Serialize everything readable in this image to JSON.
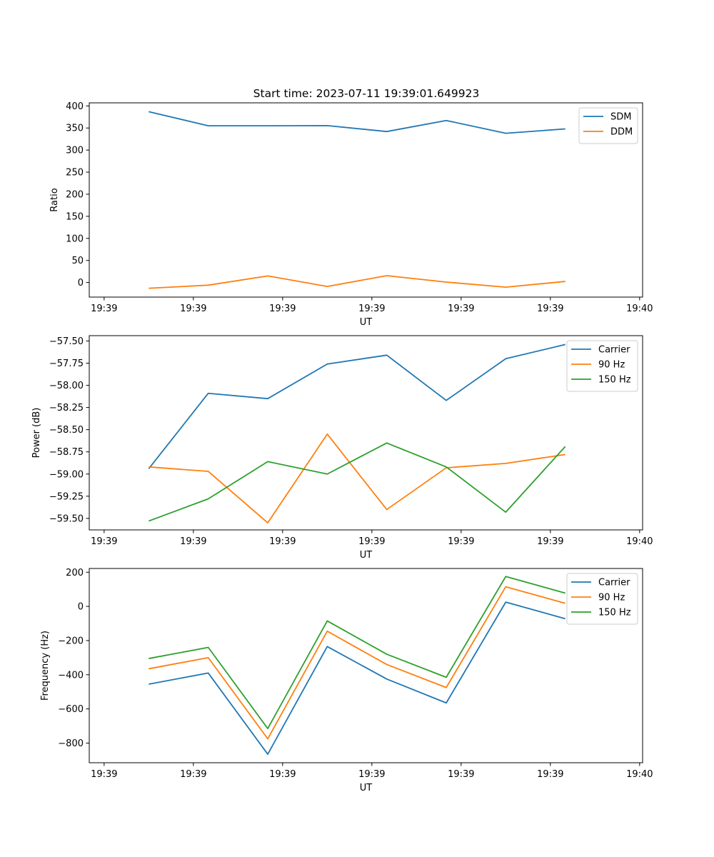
{
  "figure": {
    "title": "Start time: 2023-07-11 19:39:01.649923"
  },
  "chart_data": [
    {
      "type": "line",
      "title": "Start time: 2023-07-11 19:39:01.649923",
      "xlabel": "UT",
      "ylabel": "Ratio",
      "x": [
        1,
        2,
        3,
        4,
        5,
        6,
        7,
        8
      ],
      "xlim": [
        0,
        9.3
      ],
      "xticks": [
        {
          "value": 0.25,
          "label": "19:39"
        },
        {
          "value": 1.75,
          "label": "19:39"
        },
        {
          "value": 3.25,
          "label": "19:39"
        },
        {
          "value": 4.75,
          "label": "19:39"
        },
        {
          "value": 6.25,
          "label": "19:39"
        },
        {
          "value": 7.75,
          "label": "19:39"
        },
        {
          "value": 9.25,
          "label": "19:40"
        }
      ],
      "ylim": [
        -33,
        407
      ],
      "yticks": [
        {
          "value": 0,
          "label": "0"
        },
        {
          "value": 50,
          "label": "50"
        },
        {
          "value": 100,
          "label": "100"
        },
        {
          "value": 150,
          "label": "150"
        },
        {
          "value": 200,
          "label": "200"
        },
        {
          "value": 250,
          "label": "250"
        },
        {
          "value": 300,
          "label": "300"
        },
        {
          "value": 350,
          "label": "350"
        },
        {
          "value": 400,
          "label": "400"
        }
      ],
      "legend": "top-right",
      "grid": false,
      "series": [
        {
          "name": "SDM",
          "color": "#1f77b4",
          "values": [
            387,
            355,
            355,
            355.5,
            342,
            367,
            338,
            348
          ]
        },
        {
          "name": "DDM",
          "color": "#ff7f0e",
          "values": [
            -13,
            -6,
            15,
            -9,
            15.5,
            1,
            -10.5,
            2.5
          ]
        }
      ]
    },
    {
      "type": "line",
      "title": "",
      "xlabel": "UT",
      "ylabel": "Power (dB)",
      "x": [
        1,
        2,
        3,
        4,
        5,
        6,
        7,
        8
      ],
      "xlim": [
        0,
        9.3
      ],
      "xticks": [
        {
          "value": 0.25,
          "label": "19:39"
        },
        {
          "value": 1.75,
          "label": "19:39"
        },
        {
          "value": 3.25,
          "label": "19:39"
        },
        {
          "value": 4.75,
          "label": "19:39"
        },
        {
          "value": 6.25,
          "label": "19:39"
        },
        {
          "value": 7.75,
          "label": "19:39"
        },
        {
          "value": 9.25,
          "label": "19:40"
        }
      ],
      "ylim": [
        -59.63,
        -57.44
      ],
      "yticks": [
        {
          "value": -59.5,
          "label": "−59.50"
        },
        {
          "value": -59.25,
          "label": "−59.25"
        },
        {
          "value": -59.0,
          "label": "−59.00"
        },
        {
          "value": -58.75,
          "label": "−58.75"
        },
        {
          "value": -58.5,
          "label": "−58.50"
        },
        {
          "value": -58.25,
          "label": "−58.25"
        },
        {
          "value": -58.0,
          "label": "−58.00"
        },
        {
          "value": -57.75,
          "label": "−57.75"
        },
        {
          "value": -57.5,
          "label": "−57.50"
        }
      ],
      "legend": "top-right",
      "grid": false,
      "series": [
        {
          "name": "Carrier",
          "color": "#1f77b4",
          "values": [
            -58.94,
            -58.09,
            -58.15,
            -57.76,
            -57.66,
            -58.17,
            -57.7,
            -57.54
          ]
        },
        {
          "name": "90 Hz",
          "color": "#ff7f0e",
          "values": [
            -58.92,
            -58.97,
            -59.55,
            -58.55,
            -59.4,
            -58.93,
            -58.88,
            -58.78
          ]
        },
        {
          "name": "150 Hz",
          "color": "#2ca02c",
          "values": [
            -59.53,
            -59.28,
            -58.86,
            -59.0,
            -58.65,
            -58.92,
            -59.43,
            -58.69
          ]
        }
      ]
    },
    {
      "type": "line",
      "title": "",
      "xlabel": "UT",
      "ylabel": "Frequency (Hz)",
      "x": [
        1,
        2,
        3,
        4,
        5,
        6,
        7,
        8
      ],
      "xlim": [
        0,
        9.3
      ],
      "xticks": [
        {
          "value": 0.25,
          "label": "19:39"
        },
        {
          "value": 1.75,
          "label": "19:39"
        },
        {
          "value": 3.25,
          "label": "19:39"
        },
        {
          "value": 4.75,
          "label": "19:39"
        },
        {
          "value": 6.25,
          "label": "19:39"
        },
        {
          "value": 7.75,
          "label": "19:39"
        },
        {
          "value": 9.25,
          "label": "19:40"
        }
      ],
      "ylim": [
        -915,
        222
      ],
      "yticks": [
        {
          "value": -800,
          "label": "−800"
        },
        {
          "value": -600,
          "label": "−600"
        },
        {
          "value": -400,
          "label": "−400"
        },
        {
          "value": -200,
          "label": "−200"
        },
        {
          "value": 0,
          "label": "0"
        },
        {
          "value": 200,
          "label": "200"
        }
      ],
      "legend": "top-right",
      "grid": false,
      "series": [
        {
          "name": "Carrier",
          "color": "#1f77b4",
          "values": [
            -455,
            -390,
            -865,
            -235,
            -425,
            -565,
            25,
            -72
          ]
        },
        {
          "name": "90 Hz",
          "color": "#ff7f0e",
          "values": [
            -365,
            -300,
            -775,
            -145,
            -340,
            -475,
            115,
            18
          ]
        },
        {
          "name": "150 Hz",
          "color": "#2ca02c",
          "values": [
            -305,
            -240,
            -715,
            -85,
            -280,
            -415,
            175,
            78
          ]
        }
      ]
    }
  ]
}
